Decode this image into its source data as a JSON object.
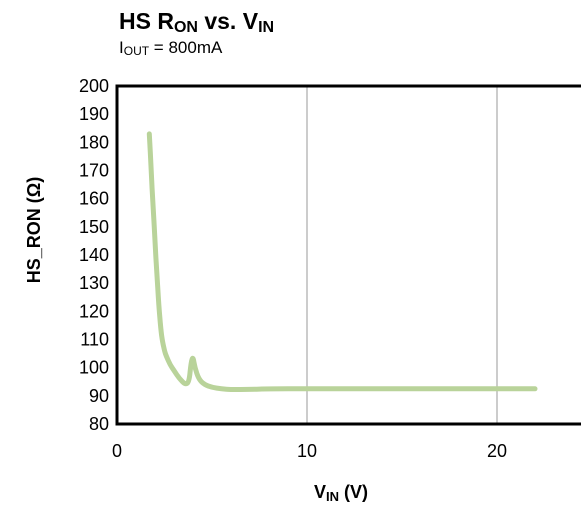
{
  "chart_data": {
    "type": "line",
    "title": {
      "main": "HS R",
      "main_sub": "ON",
      "mid": " vs. V",
      "end_sub": "IN"
    },
    "subtitle": {
      "main": "I",
      "sub": "OUT",
      "rest": " = 800mA"
    },
    "xlabel": {
      "main": "V",
      "sub": "IN",
      "rest": " (V)"
    },
    "ylabel": "HS_RON (Ω)",
    "xlim": [
      0,
      25
    ],
    "ylim": [
      80,
      200
    ],
    "xticks": [
      0,
      10,
      20
    ],
    "yticks": [
      80,
      90,
      100,
      110,
      120,
      130,
      140,
      150,
      160,
      170,
      180,
      190,
      200
    ],
    "grid": true,
    "series_color": "#b9d39a",
    "series": [
      {
        "x": [
          1.7,
          1.8,
          1.9,
          2.0,
          2.1,
          2.2,
          2.3,
          2.4,
          2.5,
          2.6,
          2.8,
          3.0,
          3.3,
          3.6,
          3.8,
          3.9,
          4.0,
          4.1,
          4.3,
          4.6,
          5.0,
          5.5,
          6.0,
          7.0,
          8.0,
          10.0,
          15.0,
          20.0,
          22.0
        ],
        "y": [
          183,
          170,
          157,
          145,
          133,
          122,
          114,
          109,
          106,
          104,
          101,
          99,
          96,
          94,
          95,
          102,
          104,
          100,
          96,
          94,
          93,
          92.5,
          92.2,
          92.3,
          92.5,
          92.5,
          92.5,
          92.5,
          92.5
        ]
      }
    ]
  }
}
